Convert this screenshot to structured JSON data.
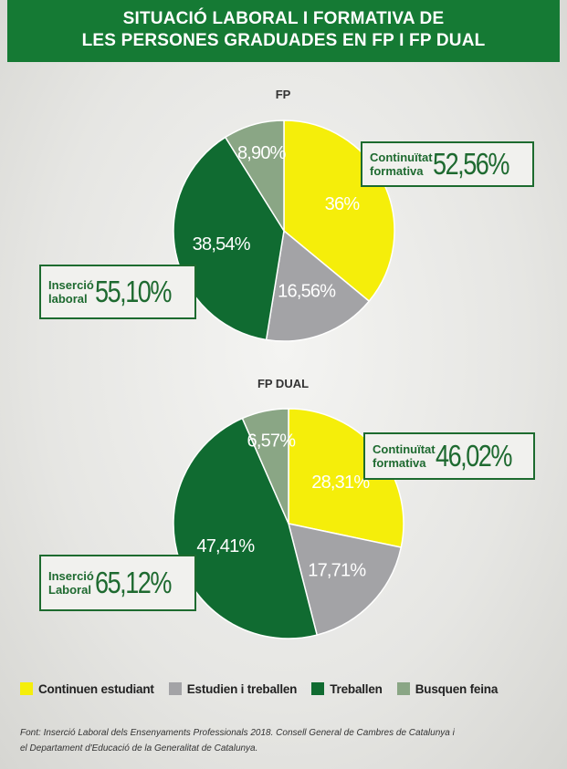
{
  "header": {
    "title_line1": "SITUACIÓ LABORAL I FORMATIVA DE",
    "title_line2": "LES PERSONES GRADUADES EN FP I FP DUAL"
  },
  "colors": {
    "continuen_estudiant": "#f5ee0a",
    "estudien_i_treballen": "#a3a3a6",
    "treballen": "#106b31",
    "busquen_feina": "#8aa685",
    "accent": "#157a34"
  },
  "chart_data": [
    {
      "type": "pie",
      "title": "FP",
      "slices": [
        {
          "name": "Continuen estudiant",
          "value": 36,
          "label": "36%"
        },
        {
          "name": "Estudien i treballen",
          "value": 16.56,
          "label": "16,56%"
        },
        {
          "name": "Treballen",
          "value": 38.54,
          "label": "38,54%"
        },
        {
          "name": "Busquen feina",
          "value": 8.9,
          "label": "8,90%"
        }
      ],
      "callouts": [
        {
          "label_line1": "Continuïtat",
          "label_line2": "formativa",
          "value": "52,56%"
        },
        {
          "label_line1": "Inserció",
          "label_line2": "laboral",
          "value": "55,10%"
        }
      ]
    },
    {
      "type": "pie",
      "title": "FP DUAL",
      "slices": [
        {
          "name": "Continuen estudiant",
          "value": 28.31,
          "label": "28,31%"
        },
        {
          "name": "Estudien i treballen",
          "value": 17.71,
          "label": "17,71%"
        },
        {
          "name": "Treballen",
          "value": 47.41,
          "label": "47,41%"
        },
        {
          "name": "Busquen feina",
          "value": 6.57,
          "label": "6,57%"
        }
      ],
      "callouts": [
        {
          "label_line1": "Continuïtat",
          "label_line2": "formativa",
          "value": "46,02%"
        },
        {
          "label_line1": "Inserció",
          "label_line2": "Laboral",
          "value": "65,12%"
        }
      ]
    }
  ],
  "legend": [
    {
      "label": "Continuen estudiant"
    },
    {
      "label": "Estudien i treballen"
    },
    {
      "label": "Treballen"
    },
    {
      "label": "Busquen feina"
    }
  ],
  "source": {
    "line1": "Font: Inserció Laboral dels Ensenyaments Professionals 2018. Consell General de Cambres de Catalunya i",
    "line2": "el Departament d'Educació de la Generalitat de Catalunya."
  }
}
